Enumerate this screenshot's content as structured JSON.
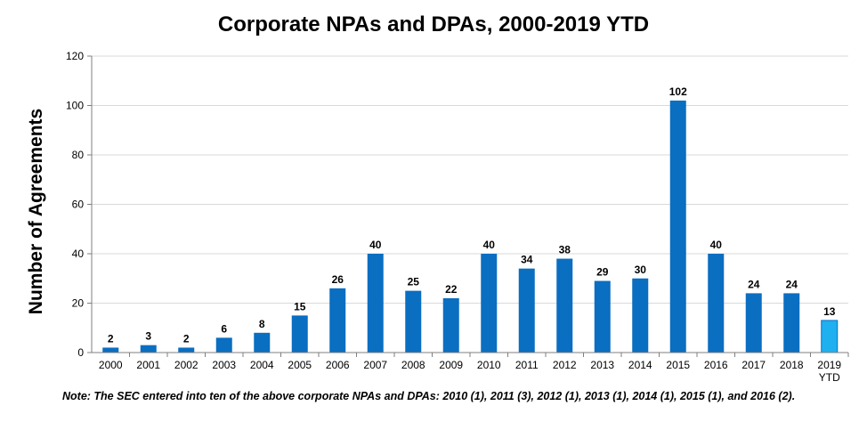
{
  "chart_data": {
    "type": "bar",
    "title": "Corporate NPAs and DPAs, 2000-2019 YTD",
    "ylabel": "Number of Agreements",
    "xlabel": "",
    "ylim": [
      0,
      120
    ],
    "yticks": [
      0,
      20,
      40,
      60,
      80,
      100,
      120
    ],
    "grid": "horizontal",
    "categories": [
      [
        "2000"
      ],
      [
        "2001"
      ],
      [
        "2002"
      ],
      [
        "2003"
      ],
      [
        "2004"
      ],
      [
        "2005"
      ],
      [
        "2006"
      ],
      [
        "2007"
      ],
      [
        "2008"
      ],
      [
        "2009"
      ],
      [
        "2010"
      ],
      [
        "2011"
      ],
      [
        "2012"
      ],
      [
        "2013"
      ],
      [
        "2014"
      ],
      [
        "2015"
      ],
      [
        "2016"
      ],
      [
        "2017"
      ],
      [
        "2018"
      ],
      [
        "2019",
        "YTD"
      ]
    ],
    "values": [
      2,
      3,
      2,
      6,
      8,
      15,
      26,
      40,
      25,
      22,
      40,
      34,
      38,
      29,
      30,
      102,
      40,
      24,
      24,
      13
    ],
    "bar_color": "#0A6EC1",
    "highlight_color": "#1FB0F0",
    "highlight_index": 19
  },
  "footnote": "Note: The SEC entered into ten of the above corporate NPAs and DPAs: 2010 (1), 2011 (3), 2012 (1), 2013 (1), 2014 (1), 2015 (1), and 2016 (2)."
}
